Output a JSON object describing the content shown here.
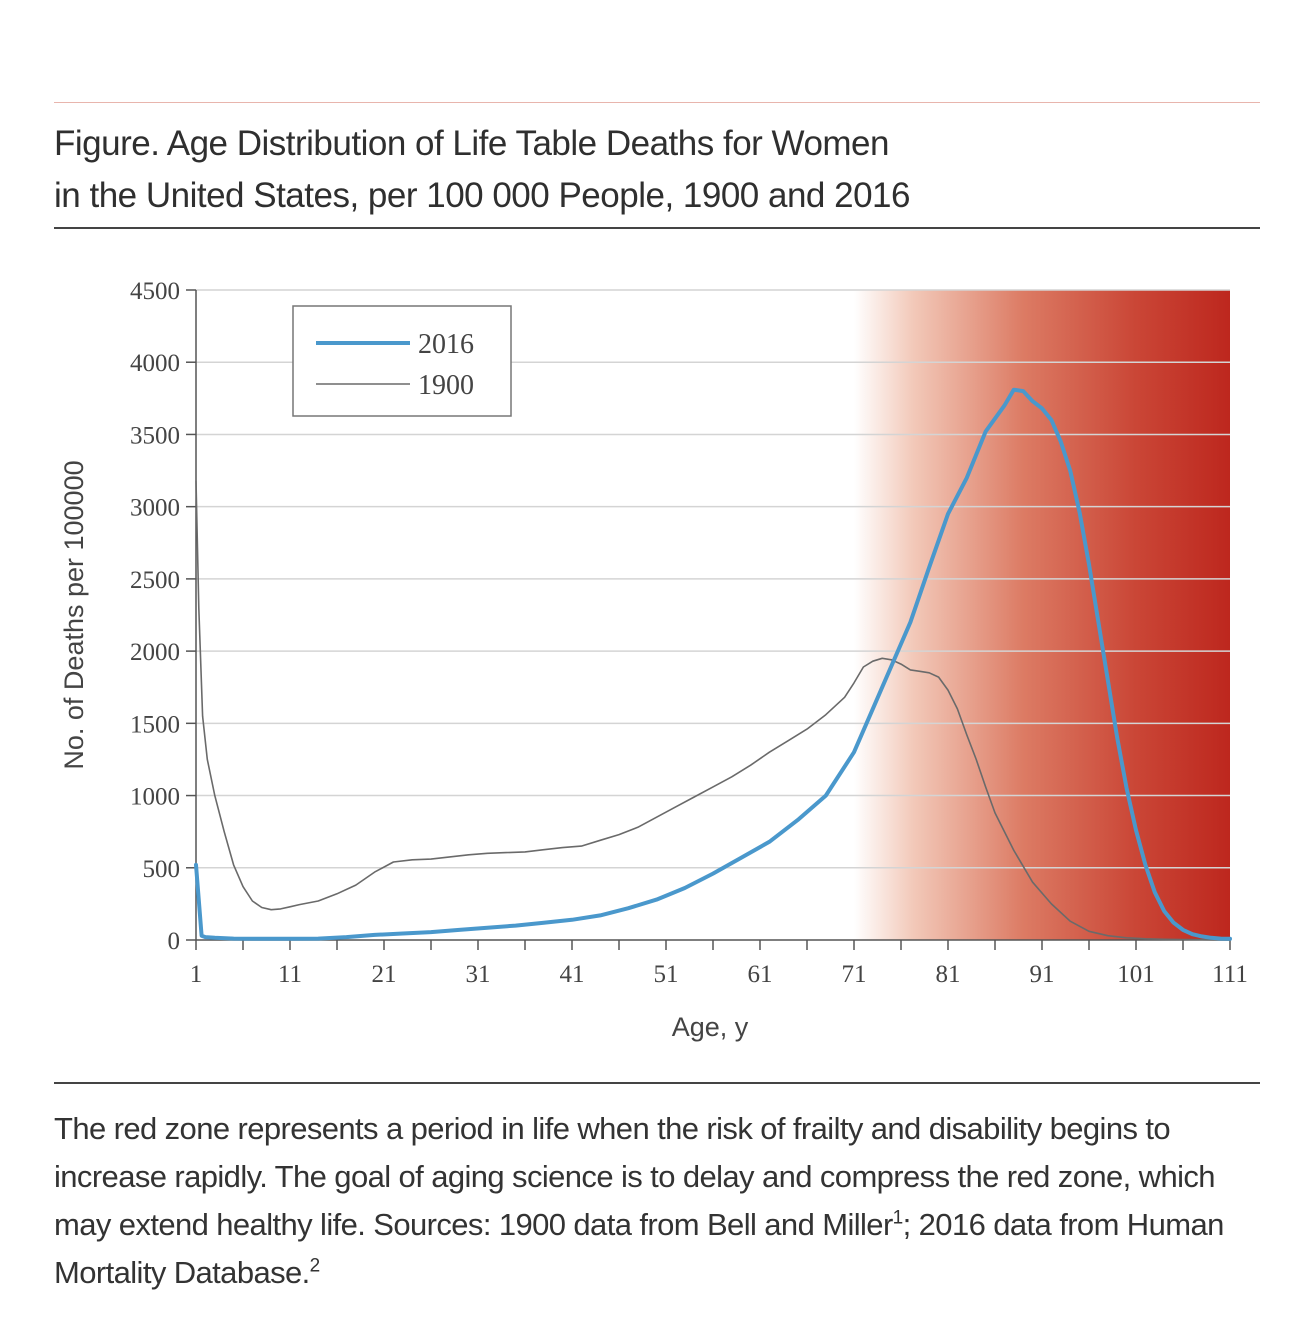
{
  "figure": {
    "title_line1": "Figure. Age Distribution of Life Table Deaths for Women",
    "title_line2": "in the United States, per 100 000 People, 1900 and 2016",
    "caption_main": "The red zone represents a period in life when the risk of frailty and disability begins to increase rapidly. The goal of aging science is to delay and compress the red zone, which may extend healthy life. Sources: 1900 data from Bell and Miller",
    "caption_ref1": "1",
    "caption_mid": "; 2016 data from Human Mortality Database.",
    "caption_ref2": "2"
  },
  "colors": {
    "series_2016": "#4a98cc",
    "series_1900": "#6a6a6a",
    "zone_red": "#c0281f",
    "grid": "#d4d4d4",
    "axis": "#555555"
  },
  "chart_data": {
    "type": "line",
    "title": "Age Distribution of Life Table Deaths for Women in the United States, per 100 000 People, 1900 and 2016",
    "xlabel": "Age, y",
    "ylabel": "No. of Deaths per 100000",
    "xlim": [
      1,
      111
    ],
    "ylim": [
      0,
      4500
    ],
    "x_ticks": [
      "1",
      "11",
      "21",
      "31",
      "41",
      "51",
      "61",
      "71",
      "81",
      "91",
      "101",
      "111"
    ],
    "y_ticks": [
      "0",
      "500",
      "1000",
      "1500",
      "2000",
      "2500",
      "3000",
      "3500",
      "4000",
      "4500"
    ],
    "grid": "horizontal",
    "legend": {
      "position": "top-left",
      "entries": [
        "2016",
        "1900"
      ]
    },
    "red_zone": {
      "start_age": 71,
      "end_age": 111,
      "label": "red zone"
    },
    "series": [
      {
        "name": "2016",
        "x": [
          1,
          1.6,
          2,
          3,
          5,
          8,
          11,
          14,
          17,
          20,
          23,
          26,
          29,
          32,
          35,
          38,
          41,
          44,
          47,
          50,
          53,
          56,
          59,
          62,
          65,
          68,
          71,
          73,
          75,
          77,
          79,
          81,
          83,
          85,
          87,
          88,
          89,
          90,
          91,
          92,
          93,
          94,
          95,
          96,
          97,
          98,
          99,
          100,
          101,
          102,
          103,
          104,
          105,
          106,
          107,
          108,
          109,
          110,
          111
        ],
        "values": [
          520,
          30,
          20,
          15,
          10,
          8,
          8,
          10,
          20,
          35,
          45,
          55,
          70,
          85,
          100,
          120,
          140,
          170,
          220,
          280,
          360,
          460,
          570,
          680,
          830,
          1000,
          1300,
          1600,
          1900,
          2200,
          2580,
          2950,
          3200,
          3520,
          3700,
          3810,
          3800,
          3730,
          3680,
          3600,
          3450,
          3250,
          2960,
          2600,
          2200,
          1800,
          1400,
          1050,
          760,
          520,
          330,
          200,
          120,
          70,
          40,
          25,
          15,
          10,
          8
        ]
      },
      {
        "name": "1900",
        "x": [
          1,
          1.3,
          1.7,
          2.2,
          3,
          4,
          5,
          6,
          7,
          8,
          9,
          10,
          11,
          12,
          14,
          16,
          18,
          20,
          22,
          24,
          26,
          28,
          30,
          32,
          34,
          36,
          38,
          40,
          42,
          44,
          46,
          48,
          50,
          52,
          54,
          56,
          58,
          60,
          62,
          64,
          66,
          68,
          70,
          71,
          72,
          73,
          74,
          75,
          76,
          77,
          78,
          79,
          80,
          81,
          82,
          83,
          84,
          85,
          86,
          88,
          90,
          92,
          94,
          96,
          98,
          100,
          102,
          104,
          106,
          108,
          110,
          111
        ],
        "values": [
          3180,
          2300,
          1550,
          1250,
          1000,
          750,
          520,
          370,
          270,
          225,
          210,
          215,
          230,
          245,
          270,
          320,
          380,
          470,
          540,
          555,
          560,
          575,
          590,
          600,
          605,
          610,
          625,
          640,
          650,
          690,
          730,
          780,
          850,
          920,
          990,
          1060,
          1130,
          1210,
          1300,
          1380,
          1460,
          1560,
          1680,
          1780,
          1890,
          1930,
          1950,
          1940,
          1910,
          1870,
          1860,
          1850,
          1820,
          1730,
          1600,
          1420,
          1250,
          1060,
          880,
          620,
          400,
          250,
          130,
          60,
          30,
          15,
          8,
          5,
          3,
          2,
          1,
          1
        ]
      }
    ]
  }
}
